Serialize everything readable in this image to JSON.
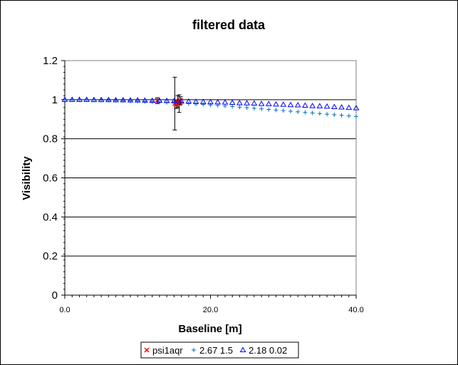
{
  "chart_data": {
    "type": "scatter",
    "title": "filtered data",
    "xlabel": "Baseline [m]",
    "ylabel": "Visibility",
    "xlim": [
      0,
      40
    ],
    "ylim": [
      0,
      1.2
    ],
    "xticks": [
      0,
      20,
      40
    ],
    "xtick_labels": [
      "0.0",
      "20.0",
      "40.0"
    ],
    "yticks": [
      0,
      0.2,
      0.4,
      0.6,
      0.8,
      1,
      1.2
    ],
    "ytick_labels": [
      "0",
      "0.2",
      "0.4",
      "0.6",
      "0.8",
      "1",
      "1.2"
    ],
    "grid": "horizontal major",
    "legend_position": "bottom",
    "series": [
      {
        "name": "psi1aqr",
        "marker": "x",
        "color": "#ff0000",
        "points": [
          {
            "x": 15.1,
            "y": 0.98,
            "err": 0.135
          },
          {
            "x": 15.3,
            "y": 0.975,
            "err": 0.02
          },
          {
            "x": 15.5,
            "y": 0.99,
            "err": 0.03
          },
          {
            "x": 15.7,
            "y": 0.98,
            "err": 0.045
          },
          {
            "x": 15.9,
            "y": 0.995,
            "err": 0.02
          },
          {
            "x": 12.7,
            "y": 0.995,
            "err": 0.015
          }
        ]
      },
      {
        "name": "2.67 1.5",
        "marker": "+",
        "color": "#0070c0",
        "x": [
          0,
          1,
          2,
          3,
          4,
          5,
          6,
          7,
          8,
          9,
          10,
          11,
          12,
          13,
          14,
          15,
          16,
          17,
          18,
          19,
          20,
          21,
          22,
          23,
          24,
          25,
          26,
          27,
          28,
          29,
          30,
          31,
          32,
          33,
          34,
          35,
          36,
          37,
          38,
          39,
          40
        ],
        "values": [
          1.0,
          1.0,
          1.0,
          0.999,
          0.999,
          0.998,
          0.997,
          0.996,
          0.995,
          0.994,
          0.993,
          0.991,
          0.99,
          0.988,
          0.986,
          0.984,
          0.982,
          0.98,
          0.978,
          0.976,
          0.973,
          0.971,
          0.968,
          0.965,
          0.962,
          0.959,
          0.956,
          0.953,
          0.95,
          0.947,
          0.944,
          0.941,
          0.938,
          0.935,
          0.932,
          0.929,
          0.926,
          0.923,
          0.92,
          0.917,
          0.914
        ]
      },
      {
        "name": "2.18 0.02",
        "marker": "triangle",
        "color": "#0000ff",
        "x": [
          0,
          1,
          2,
          3,
          4,
          5,
          6,
          7,
          8,
          9,
          10,
          11,
          12,
          13,
          14,
          15,
          16,
          17,
          18,
          19,
          20,
          21,
          22,
          23,
          24,
          25,
          26,
          27,
          28,
          29,
          30,
          31,
          32,
          33,
          34,
          35,
          36,
          37,
          38,
          39,
          40
        ],
        "values": [
          1.0,
          1.0,
          1.0,
          1.0,
          0.999,
          0.999,
          0.999,
          0.998,
          0.998,
          0.997,
          0.997,
          0.996,
          0.995,
          0.995,
          0.994,
          0.993,
          0.992,
          0.991,
          0.99,
          0.989,
          0.988,
          0.987,
          0.986,
          0.985,
          0.983,
          0.982,
          0.981,
          0.979,
          0.978,
          0.976,
          0.975,
          0.973,
          0.972,
          0.97,
          0.968,
          0.967,
          0.965,
          0.963,
          0.961,
          0.959,
          0.957
        ]
      }
    ]
  }
}
